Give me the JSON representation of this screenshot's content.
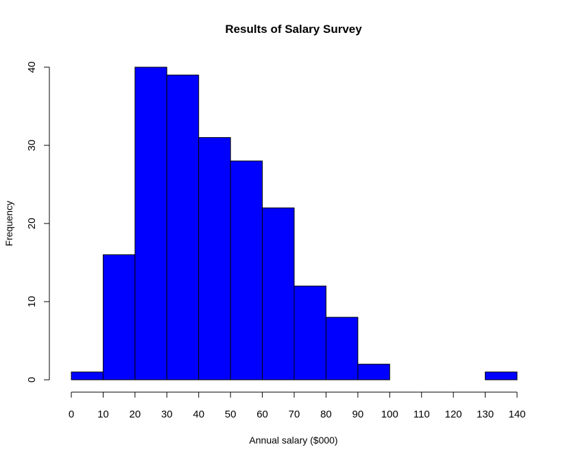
{
  "chart_data": {
    "type": "bar",
    "title": "Results of Salary Survey",
    "xlabel": "Annual salary ($000)",
    "ylabel": "Frequency",
    "bins": [
      {
        "from": 0,
        "to": 10,
        "count": 1
      },
      {
        "from": 10,
        "to": 20,
        "count": 16
      },
      {
        "from": 20,
        "to": 30,
        "count": 40
      },
      {
        "from": 30,
        "to": 40,
        "count": 39
      },
      {
        "from": 40,
        "to": 50,
        "count": 31
      },
      {
        "from": 50,
        "to": 60,
        "count": 28
      },
      {
        "from": 60,
        "to": 70,
        "count": 22
      },
      {
        "from": 70,
        "to": 80,
        "count": 12
      },
      {
        "from": 80,
        "to": 90,
        "count": 8
      },
      {
        "from": 90,
        "to": 100,
        "count": 2
      },
      {
        "from": 100,
        "to": 110,
        "count": 0
      },
      {
        "from": 110,
        "to": 120,
        "count": 0
      },
      {
        "from": 120,
        "to": 130,
        "count": 0
      },
      {
        "from": 130,
        "to": 140,
        "count": 1
      }
    ],
    "xlim": [
      0,
      140
    ],
    "ylim": [
      0,
      40
    ],
    "x_ticks": [
      "0",
      "10",
      "20",
      "30",
      "40",
      "50",
      "60",
      "70",
      "80",
      "90",
      "100",
      "110",
      "120",
      "130",
      "140"
    ],
    "y_ticks": [
      "0",
      "10",
      "20",
      "30",
      "40"
    ],
    "bar_color": "#0000ff",
    "bar_border": "#000000",
    "grid": false,
    "legend": "none"
  }
}
